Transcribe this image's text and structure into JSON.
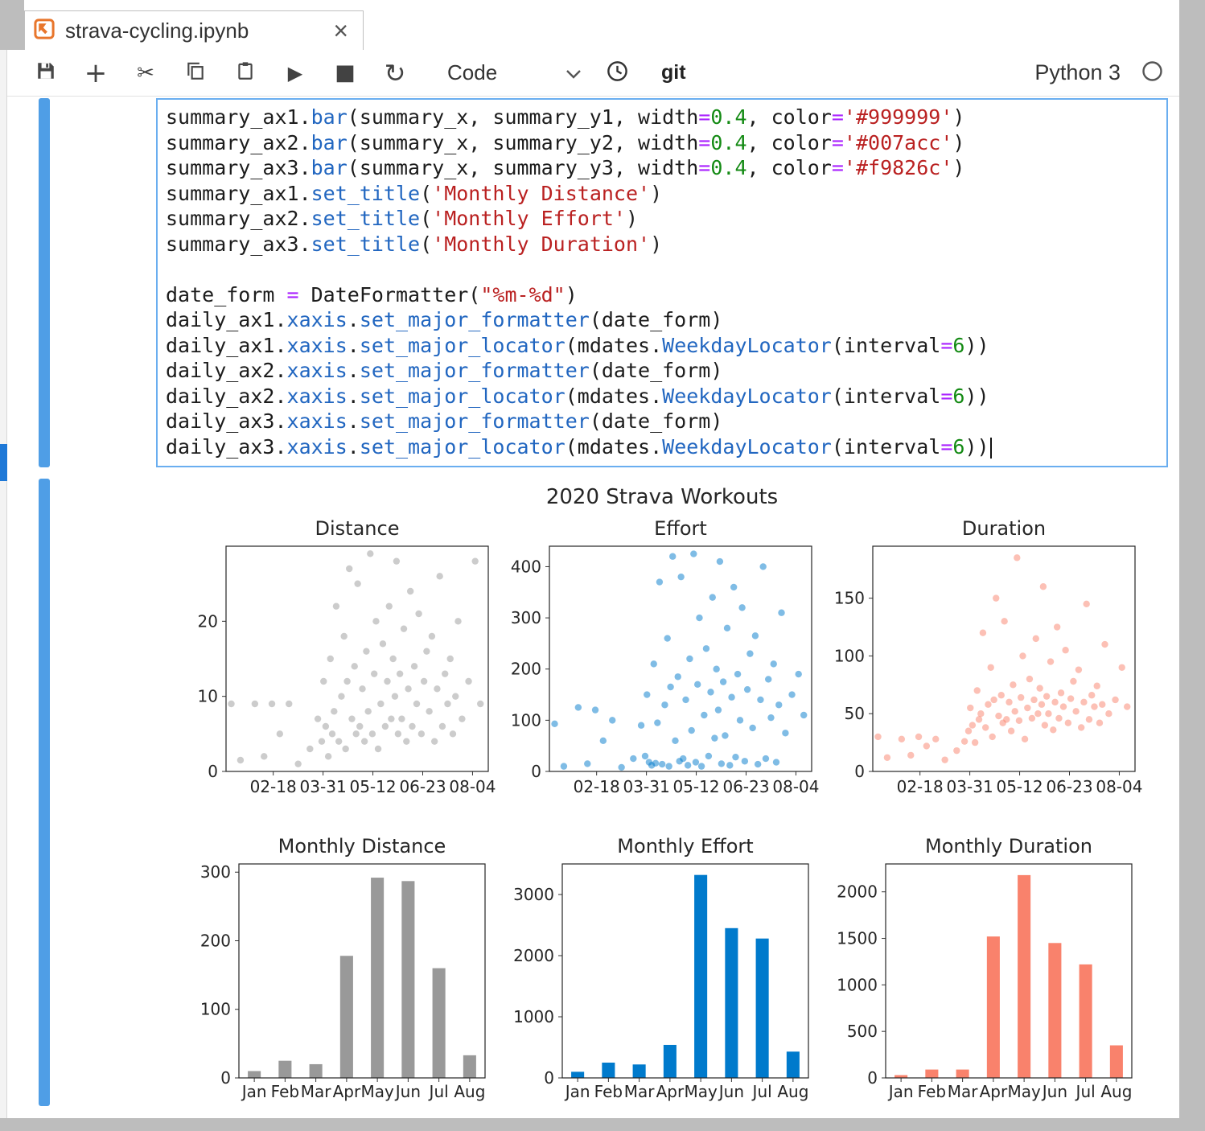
{
  "tab": {
    "title": "strava-cycling.ipynb",
    "close_glyph": "×"
  },
  "toolbar": {
    "mode": "Code",
    "git": "git",
    "kernel": "Python 3",
    "glyphs": {
      "add": "+",
      "cut": "✂",
      "run": "▶",
      "stop": "■",
      "restart": "↻"
    },
    "icon_names": [
      "save-icon",
      "add-icon",
      "cut-icon",
      "copy-icon",
      "paste-icon",
      "run-icon",
      "stop-icon",
      "restart-icon",
      "mode-dropdown",
      "clock-icon",
      "git-label",
      "kernel-name",
      "kernel-status-circle"
    ]
  },
  "colors": {
    "accent_blue": "#4f9ee6",
    "cell_border": "#6aaef0",
    "bar_gray": "#999999",
    "bar_blue": "#007acc",
    "bar_salmon": "#f9826c",
    "tab_icon_orange": "#e8762c"
  },
  "code": {
    "lines": [
      [
        [
          "p",
          "summary_ax1."
        ],
        [
          "f",
          "bar"
        ],
        [
          "p",
          "(summary_x, summary_y1, width"
        ],
        [
          "o",
          "="
        ],
        [
          "n",
          "0.4"
        ],
        [
          "p",
          ", color"
        ],
        [
          "o",
          "="
        ],
        [
          "s",
          "'#999999'"
        ],
        [
          "p",
          ")"
        ]
      ],
      [
        [
          "p",
          "summary_ax2."
        ],
        [
          "f",
          "bar"
        ],
        [
          "p",
          "(summary_x, summary_y2, width"
        ],
        [
          "o",
          "="
        ],
        [
          "n",
          "0.4"
        ],
        [
          "p",
          ", color"
        ],
        [
          "o",
          "="
        ],
        [
          "s",
          "'#007acc'"
        ],
        [
          "p",
          ")"
        ]
      ],
      [
        [
          "p",
          "summary_ax3."
        ],
        [
          "f",
          "bar"
        ],
        [
          "p",
          "(summary_x, summary_y3, width"
        ],
        [
          "o",
          "="
        ],
        [
          "n",
          "0.4"
        ],
        [
          "p",
          ", color"
        ],
        [
          "o",
          "="
        ],
        [
          "s",
          "'#f9826c'"
        ],
        [
          "p",
          ")"
        ]
      ],
      [
        [
          "p",
          "summary_ax1."
        ],
        [
          "f",
          "set_title"
        ],
        [
          "p",
          "("
        ],
        [
          "s",
          "'Monthly Distance'"
        ],
        [
          "p",
          ")"
        ]
      ],
      [
        [
          "p",
          "summary_ax2."
        ],
        [
          "f",
          "set_title"
        ],
        [
          "p",
          "("
        ],
        [
          "s",
          "'Monthly Effort'"
        ],
        [
          "p",
          ")"
        ]
      ],
      [
        [
          "p",
          "summary_ax3."
        ],
        [
          "f",
          "set_title"
        ],
        [
          "p",
          "("
        ],
        [
          "s",
          "'Monthly Duration'"
        ],
        [
          "p",
          ")"
        ]
      ],
      [],
      [
        [
          "p",
          "date_form "
        ],
        [
          "o",
          "="
        ],
        [
          "p",
          " DateFormatter("
        ],
        [
          "s",
          "\"%m-%d\""
        ],
        [
          "p",
          ")"
        ]
      ],
      [
        [
          "p",
          "daily_ax1."
        ],
        [
          "f",
          "xaxis"
        ],
        [
          "p",
          "."
        ],
        [
          "f",
          "set_major_formatter"
        ],
        [
          "p",
          "(date_form)"
        ]
      ],
      [
        [
          "p",
          "daily_ax1."
        ],
        [
          "f",
          "xaxis"
        ],
        [
          "p",
          "."
        ],
        [
          "f",
          "set_major_locator"
        ],
        [
          "p",
          "(mdates."
        ],
        [
          "f",
          "WeekdayLocator"
        ],
        [
          "p",
          "(interval"
        ],
        [
          "o",
          "="
        ],
        [
          "n",
          "6"
        ],
        [
          "p",
          "))"
        ]
      ],
      [
        [
          "p",
          "daily_ax2."
        ],
        [
          "f",
          "xaxis"
        ],
        [
          "p",
          "."
        ],
        [
          "f",
          "set_major_formatter"
        ],
        [
          "p",
          "(date_form)"
        ]
      ],
      [
        [
          "p",
          "daily_ax2."
        ],
        [
          "f",
          "xaxis"
        ],
        [
          "p",
          "."
        ],
        [
          "f",
          "set_major_locator"
        ],
        [
          "p",
          "(mdates."
        ],
        [
          "f",
          "WeekdayLocator"
        ],
        [
          "p",
          "(interval"
        ],
        [
          "o",
          "="
        ],
        [
          "n",
          "6"
        ],
        [
          "p",
          "))"
        ]
      ],
      [
        [
          "p",
          "daily_ax3."
        ],
        [
          "f",
          "xaxis"
        ],
        [
          "p",
          "."
        ],
        [
          "f",
          "set_major_formatter"
        ],
        [
          "p",
          "(date_form)"
        ]
      ],
      [
        [
          "p",
          "daily_ax3."
        ],
        [
          "f",
          "xaxis"
        ],
        [
          "p",
          "."
        ],
        [
          "f",
          "set_major_locator"
        ],
        [
          "p",
          "(mdates."
        ],
        [
          "f",
          "WeekdayLocator"
        ],
        [
          "p",
          "(interval"
        ],
        [
          "o",
          "="
        ],
        [
          "n",
          "6"
        ],
        [
          "p",
          "))"
        ],
        [
          "cursor",
          ""
        ]
      ]
    ]
  },
  "chart_data": {
    "suptitle": "2020 Strava Workouts",
    "rides_note": "each ride = [x_fraction_of_axis, distance, effort, duration]",
    "rides": [
      [
        0.02,
        9,
        93,
        30
      ],
      [
        0.055,
        1.5,
        10,
        12
      ],
      [
        0.11,
        9,
        125,
        28
      ],
      [
        0.145,
        2,
        15,
        14
      ],
      [
        0.175,
        9,
        120,
        30
      ],
      [
        0.205,
        5,
        60,
        22
      ],
      [
        0.24,
        9,
        100,
        28
      ],
      [
        0.275,
        1,
        8,
        10
      ],
      [
        0.32,
        3,
        25,
        18
      ],
      [
        0.35,
        7,
        90,
        26
      ],
      [
        0.365,
        4,
        30,
        35
      ],
      [
        0.372,
        12,
        150,
        55
      ],
      [
        0.38,
        6,
        18,
        40
      ],
      [
        0.39,
        2,
        12,
        25
      ],
      [
        0.398,
        15,
        210,
        70
      ],
      [
        0.405,
        5,
        16,
        45
      ],
      [
        0.412,
        8,
        95,
        50
      ],
      [
        0.42,
        22,
        370,
        120
      ],
      [
        0.43,
        4,
        14,
        38
      ],
      [
        0.44,
        10,
        130,
        58
      ],
      [
        0.45,
        18,
        260,
        90
      ],
      [
        0.456,
        3,
        10,
        30
      ],
      [
        0.462,
        12,
        165,
        62
      ],
      [
        0.47,
        27,
        420,
        150
      ],
      [
        0.48,
        7,
        60,
        48
      ],
      [
        0.49,
        14,
        185,
        66
      ],
      [
        0.496,
        5,
        20,
        42
      ],
      [
        0.502,
        25,
        380,
        130
      ],
      [
        0.51,
        6,
        25,
        45
      ],
      [
        0.52,
        11,
        140,
        60
      ],
      [
        0.528,
        4,
        12,
        35
      ],
      [
        0.535,
        16,
        220,
        75
      ],
      [
        0.542,
        8,
        80,
        52
      ],
      [
        0.55,
        29,
        425,
        185
      ],
      [
        0.558,
        5,
        18,
        44
      ],
      [
        0.565,
        13,
        170,
        64
      ],
      [
        0.572,
        20,
        300,
        100
      ],
      [
        0.58,
        3,
        10,
        28
      ],
      [
        0.59,
        9,
        110,
        55
      ],
      [
        0.598,
        17,
        240,
        80
      ],
      [
        0.607,
        6,
        30,
        46
      ],
      [
        0.615,
        12,
        155,
        62
      ],
      [
        0.622,
        22,
        340,
        115
      ],
      [
        0.63,
        7,
        65,
        50
      ],
      [
        0.637,
        15,
        200,
        72
      ],
      [
        0.644,
        10,
        120,
        58
      ],
      [
        0.65,
        28,
        410,
        160
      ],
      [
        0.656,
        5,
        15,
        40
      ],
      [
        0.663,
        13,
        175,
        65
      ],
      [
        0.67,
        7,
        70,
        50
      ],
      [
        0.678,
        19,
        280,
        95
      ],
      [
        0.688,
        4,
        12,
        36
      ],
      [
        0.695,
        11,
        145,
        60
      ],
      [
        0.703,
        24,
        360,
        125
      ],
      [
        0.71,
        6,
        28,
        46
      ],
      [
        0.718,
        14,
        190,
        68
      ],
      [
        0.727,
        9,
        100,
        56
      ],
      [
        0.735,
        21,
        320,
        105
      ],
      [
        0.745,
        5,
        20,
        42
      ],
      [
        0.755,
        12,
        160,
        63
      ],
      [
        0.765,
        16,
        230,
        78
      ],
      [
        0.775,
        8,
        85,
        52
      ],
      [
        0.785,
        18,
        265,
        88
      ],
      [
        0.795,
        4,
        14,
        38
      ],
      [
        0.805,
        11,
        140,
        60
      ],
      [
        0.815,
        26,
        400,
        145
      ],
      [
        0.825,
        6,
        25,
        45
      ],
      [
        0.835,
        13,
        180,
        66
      ],
      [
        0.845,
        9,
        105,
        56
      ],
      [
        0.855,
        15,
        210,
        74
      ],
      [
        0.865,
        5,
        18,
        42
      ],
      [
        0.875,
        10,
        130,
        58
      ],
      [
        0.885,
        20,
        310,
        110
      ],
      [
        0.9,
        7,
        75,
        50
      ],
      [
        0.925,
        12,
        150,
        62
      ],
      [
        0.95,
        28,
        190,
        90
      ],
      [
        0.97,
        9,
        110,
        56
      ]
    ],
    "charts": [
      {
        "id": "distance",
        "type": "scatter",
        "title": "Distance",
        "color": "#999999",
        "field": 1,
        "ymax": 30,
        "yticks": [
          0,
          10,
          20
        ],
        "xticks": [
          "02-18",
          "03-31",
          "05-12",
          "06-23",
          "08-04"
        ],
        "xtick_pos": [
          0.18,
          0.37,
          0.56,
          0.75,
          0.94
        ]
      },
      {
        "id": "effort",
        "type": "scatter",
        "title": "Effort",
        "color": "#007acc",
        "field": 2,
        "ymax": 440,
        "yticks": [
          0,
          100,
          200,
          300,
          400
        ],
        "xticks": [
          "02-18",
          "03-31",
          "05-12",
          "06-23",
          "08-04"
        ],
        "xtick_pos": [
          0.18,
          0.37,
          0.56,
          0.75,
          0.94
        ]
      },
      {
        "id": "duration",
        "type": "scatter",
        "title": "Duration",
        "color": "#f9826c",
        "field": 3,
        "ymax": 195,
        "yticks": [
          0,
          50,
          100,
          150
        ],
        "xticks": [
          "02-18",
          "03-31",
          "05-12",
          "06-23",
          "08-04"
        ],
        "xtick_pos": [
          0.18,
          0.37,
          0.56,
          0.75,
          0.94
        ]
      },
      {
        "id": "monthly-distance",
        "type": "bar",
        "title": "Monthly Distance",
        "color": "#999999",
        "categories": [
          "Jan",
          "Feb",
          "Mar",
          "Apr",
          "May",
          "Jun",
          "Jul",
          "Aug"
        ],
        "values": [
          10,
          25,
          20,
          178,
          292,
          287,
          160,
          33
        ],
        "ymax": 312,
        "yticks": [
          0,
          100,
          200,
          300
        ]
      },
      {
        "id": "monthly-effort",
        "type": "bar",
        "title": "Monthly Effort",
        "color": "#007acc",
        "categories": [
          "Jan",
          "Feb",
          "Mar",
          "Apr",
          "May",
          "Jun",
          "Jul",
          "Aug"
        ],
        "values": [
          100,
          250,
          220,
          540,
          3320,
          2450,
          2280,
          430
        ],
        "ymax": 3500,
        "yticks": [
          0,
          1000,
          2000,
          3000
        ]
      },
      {
        "id": "monthly-duration",
        "type": "bar",
        "title": "Monthly Duration",
        "color": "#f9826c",
        "categories": [
          "Jan",
          "Feb",
          "Mar",
          "Apr",
          "May",
          "Jun",
          "Jul",
          "Aug"
        ],
        "values": [
          30,
          90,
          90,
          1520,
          2180,
          1450,
          1220,
          350
        ],
        "ymax": 2300,
        "yticks": [
          0,
          500,
          1000,
          1500,
          2000
        ]
      }
    ]
  }
}
